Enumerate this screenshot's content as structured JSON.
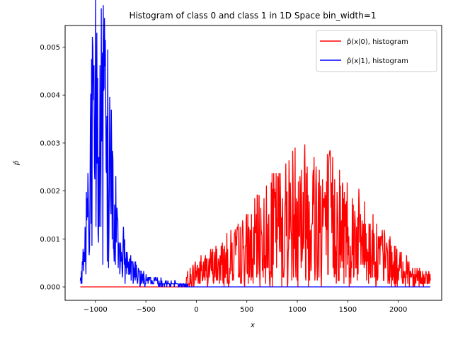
{
  "chart_data": {
    "type": "line",
    "title": "Histogram of class 0 and class 1 in 1D Space bin_width=1",
    "xlabel": "x",
    "ylabel": "p̂",
    "xlim": [
      -1300,
      2430
    ],
    "ylim": [
      -0.00028,
      0.00545
    ],
    "xticks": [
      -1000,
      -500,
      0,
      500,
      1000,
      1500,
      2000
    ],
    "xtick_labels": [
      "−1000",
      "−500",
      "0",
      "500",
      "1000",
      "1500",
      "2000"
    ],
    "yticks": [
      0.0,
      0.001,
      0.002,
      0.003,
      0.004,
      0.005
    ],
    "ytick_labels": [
      "0.000",
      "0.001",
      "0.002",
      "0.003",
      "0.004",
      "0.005"
    ],
    "grid": false,
    "legend_position": "top-right",
    "series": [
      {
        "name": "p̂(x|0), histogram",
        "color": "#ff0000",
        "x_range": [
          -1150,
          2320
        ],
        "flat_until": -100,
        "envelope": [
          [
            -100,
            0.00015
          ],
          [
            0,
            0.0003
          ],
          [
            250,
            0.0005
          ],
          [
            500,
            0.0008
          ],
          [
            750,
            0.0012
          ],
          [
            1000,
            0.0016
          ],
          [
            1250,
            0.0016
          ],
          [
            1500,
            0.0012
          ],
          [
            1750,
            0.0008
          ],
          [
            2000,
            0.0004
          ],
          [
            2320,
            0.00015
          ]
        ],
        "peaks": [
          [
            385,
            0.0012
          ],
          [
            1010,
            0.0022
          ],
          [
            1120,
            0.0021
          ],
          [
            1190,
            0.002
          ],
          [
            1300,
            0.0018
          ],
          [
            1290,
            0.0022
          ]
        ]
      },
      {
        "name": "p̂(x|1), histogram",
        "color": "#0000ff",
        "x_range": [
          -1150,
          2320
        ],
        "envelope": [
          [
            -1150,
            0.0001
          ],
          [
            -1100,
            0.0008
          ],
          [
            -1050,
            0.0028
          ],
          [
            -1000,
            0.0037
          ],
          [
            -950,
            0.0036
          ],
          [
            -900,
            0.0033
          ],
          [
            -850,
            0.0026
          ],
          [
            -800,
            0.0016
          ],
          [
            -750,
            0.0009
          ],
          [
            -700,
            0.0006
          ],
          [
            -600,
            0.0003
          ],
          [
            -500,
            0.00015
          ],
          [
            -300,
            8e-05
          ],
          [
            -100,
            3e-05
          ],
          [
            0,
            0.0
          ]
        ],
        "peaks": [
          [
            -985,
            0.0053
          ],
          [
            -1020,
            0.0043
          ],
          [
            -905,
            0.0046
          ],
          [
            -940,
            0.0041
          ]
        ]
      }
    ]
  }
}
